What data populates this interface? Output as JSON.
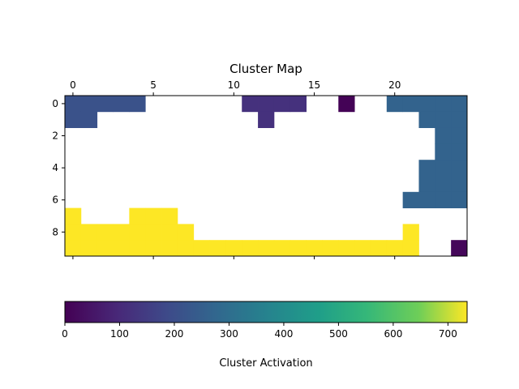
{
  "chart_data": {
    "type": "heatmap",
    "title": "Cluster Map",
    "grid": false,
    "x_ticks": [
      0,
      5,
      10,
      15,
      20
    ],
    "y_ticks": [
      0,
      2,
      4,
      6,
      8
    ],
    "x_range": [
      -0.5,
      24.5
    ],
    "y_range": [
      -0.5,
      9.5
    ],
    "x_axis_position": "top",
    "colormap": "viridis",
    "colorbar": {
      "label": "Cluster Activation",
      "orientation": "horizontal",
      "placement": "bottom",
      "range": [
        0,
        735
      ],
      "ticks": [
        0,
        100,
        200,
        300,
        400,
        500,
        600,
        700
      ]
    },
    "values": [
      [
        210,
        210,
        210,
        210,
        210,
        null,
        null,
        null,
        null,
        null,
        null,
        120,
        120,
        120,
        120,
        null,
        null,
        5,
        null,
        null,
        265,
        265,
        265,
        265,
        265
      ],
      [
        210,
        210,
        null,
        null,
        null,
        null,
        null,
        null,
        null,
        null,
        null,
        null,
        120,
        null,
        null,
        null,
        null,
        null,
        null,
        null,
        null,
        null,
        265,
        265,
        265
      ],
      [
        null,
        null,
        null,
        null,
        null,
        null,
        null,
        null,
        null,
        null,
        null,
        null,
        null,
        null,
        null,
        null,
        null,
        null,
        null,
        null,
        null,
        null,
        null,
        265,
        265
      ],
      [
        null,
        null,
        null,
        null,
        null,
        null,
        null,
        null,
        null,
        null,
        null,
        null,
        null,
        null,
        null,
        null,
        null,
        null,
        null,
        null,
        null,
        null,
        null,
        265,
        265
      ],
      [
        null,
        null,
        null,
        null,
        null,
        null,
        null,
        null,
        null,
        null,
        null,
        null,
        null,
        null,
        null,
        null,
        null,
        null,
        null,
        null,
        null,
        null,
        265,
        265,
        265
      ],
      [
        null,
        null,
        null,
        null,
        null,
        null,
        null,
        null,
        null,
        null,
        null,
        null,
        null,
        null,
        null,
        null,
        null,
        null,
        null,
        null,
        null,
        null,
        265,
        265,
        265
      ],
      [
        null,
        null,
        null,
        null,
        null,
        null,
        null,
        null,
        null,
        null,
        null,
        null,
        null,
        null,
        null,
        null,
        null,
        null,
        null,
        null,
        null,
        265,
        265,
        265,
        265
      ],
      [
        735,
        null,
        null,
        null,
        735,
        735,
        735,
        null,
        null,
        null,
        null,
        null,
        null,
        null,
        null,
        null,
        null,
        null,
        null,
        null,
        null,
        null,
        null,
        null,
        null
      ],
      [
        735,
        735,
        735,
        735,
        735,
        735,
        735,
        735,
        null,
        null,
        null,
        null,
        null,
        null,
        null,
        null,
        null,
        null,
        null,
        null,
        null,
        735,
        null,
        null,
        null
      ],
      [
        735,
        735,
        735,
        735,
        735,
        735,
        735,
        735,
        735,
        735,
        735,
        735,
        735,
        735,
        735,
        735,
        735,
        735,
        735,
        735,
        735,
        735,
        null,
        null,
        15
      ]
    ]
  }
}
